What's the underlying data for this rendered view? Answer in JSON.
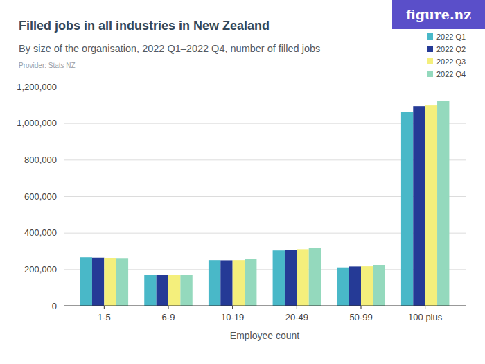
{
  "chart_data": {
    "type": "bar",
    "title": "Filled jobs in all industries in New Zealand",
    "subtitle": "By size of the organisation, 2022 Q1–2022 Q4, number of filled jobs",
    "annotations": [
      "Provider: Stats NZ",
      "figure.nz"
    ],
    "x_label": "Employee count",
    "categories": [
      "1-5",
      "6-9",
      "10-19",
      "20-49",
      "50-99",
      "100 plus"
    ],
    "series": [
      {
        "name": "2022 Q1",
        "color": "#49b8c8",
        "values": [
          265000,
          170000,
          250000,
          303000,
          210000,
          1060000
        ]
      },
      {
        "name": "2022 Q2",
        "color": "#253a96",
        "values": [
          263000,
          168000,
          249000,
          307000,
          215000,
          1093000
        ]
      },
      {
        "name": "2022 Q3",
        "color": "#f4ef7c",
        "values": [
          262000,
          169000,
          250000,
          310000,
          216000,
          1097000
        ]
      },
      {
        "name": "2022 Q4",
        "color": "#94d9bd",
        "values": [
          261000,
          170000,
          255000,
          318000,
          224000,
          1123000
        ]
      }
    ],
    "ylim": [
      0,
      1200000
    ],
    "yticks": [
      0,
      {
        "value": 200000,
        "label": "200,000"
      },
      {
        "value": 400000,
        "label": "400,000"
      },
      {
        "value": 600000,
        "label": "600,000"
      },
      {
        "value": 800000,
        "label": "800,000"
      },
      {
        "value": 1000000,
        "label": "1,000,000"
      },
      {
        "value": 1200000,
        "label": "1,200,000"
      }
    ],
    "grid": true,
    "legend": "top-right"
  }
}
